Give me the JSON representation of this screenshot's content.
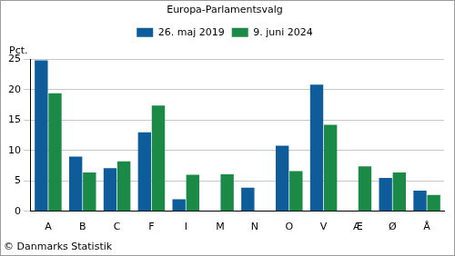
{
  "chart_data": {
    "type": "bar",
    "title": "Europa-Parlamentsvalg",
    "y_label": "Pct.",
    "source": "© Danmarks Statistik",
    "categories": [
      "A",
      "B",
      "C",
      "F",
      "I",
      "M",
      "N",
      "O",
      "V",
      "Æ",
      "Ø",
      "Å"
    ],
    "series": [
      {
        "name": "26. maj 2019",
        "color": "#0e5c99",
        "values": [
          24.8,
          9.0,
          7.1,
          13.0,
          2.0,
          null,
          3.9,
          10.8,
          20.8,
          null,
          5.5,
          3.4
        ]
      },
      {
        "name": "9. juni 2024",
        "color": "#1b8a47",
        "values": [
          19.4,
          6.4,
          8.2,
          17.4,
          6.0,
          6.1,
          null,
          6.6,
          14.2,
          7.4,
          6.4,
          2.7
        ]
      }
    ],
    "ylim": [
      0,
      25
    ],
    "yticks": [
      0,
      5,
      10,
      15,
      20,
      25
    ],
    "grid": true,
    "legend": "top"
  }
}
